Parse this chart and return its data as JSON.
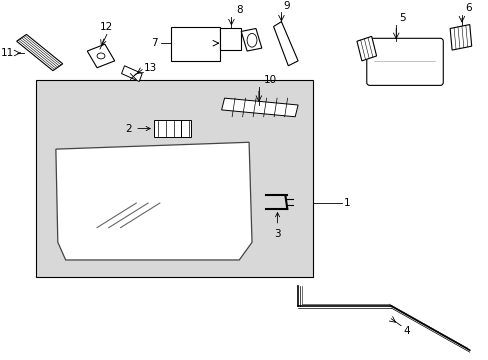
{
  "bg_color": "#ffffff",
  "panel_bg": "#d8d8d8",
  "line_color": "#000000",
  "gray": "#888888"
}
